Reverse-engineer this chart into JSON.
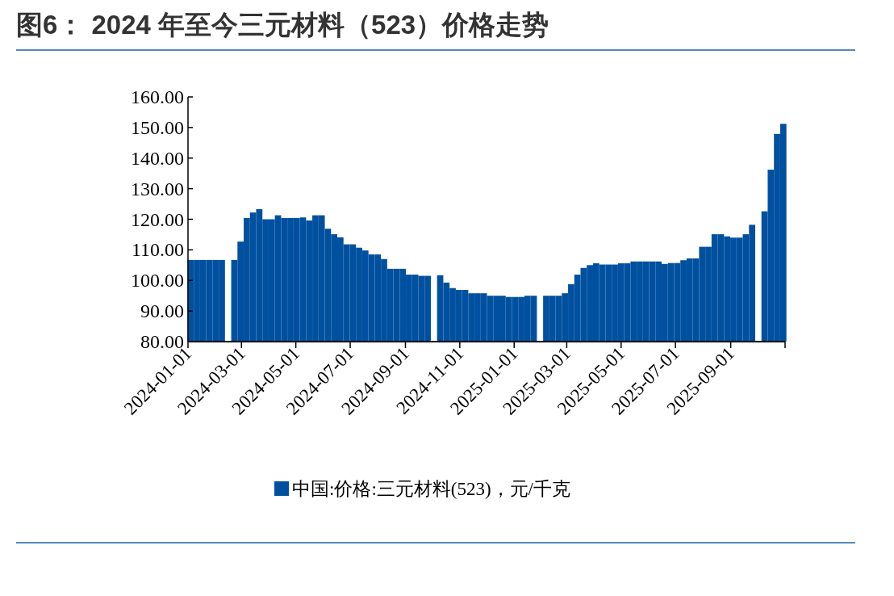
{
  "chart_data": {
    "type": "bar",
    "title": "图6： 2024 年至今三元材料（523）价格走势",
    "x": [
      "2024-01-04",
      "2024-01-11",
      "2024-01-18",
      "2024-01-25",
      "2024-02-01",
      "2024-02-08",
      "2024-02-15",
      "2024-02-22",
      "2024-02-29",
      "2024-03-07",
      "2024-03-14",
      "2024-03-21",
      "2024-03-28",
      "2024-04-04",
      "2024-04-11",
      "2024-04-18",
      "2024-04-25",
      "2024-05-02",
      "2024-05-09",
      "2024-05-16",
      "2024-05-23",
      "2024-05-30",
      "2024-06-06",
      "2024-06-13",
      "2024-06-20",
      "2024-06-27",
      "2024-07-04",
      "2024-07-11",
      "2024-07-18",
      "2024-07-25",
      "2024-08-01",
      "2024-08-08",
      "2024-08-15",
      "2024-08-22",
      "2024-08-29",
      "2024-09-05",
      "2024-09-12",
      "2024-09-19",
      "2024-09-26",
      "2024-10-03",
      "2024-10-10",
      "2024-10-17",
      "2024-10-24",
      "2024-10-31",
      "2024-11-07",
      "2024-11-14",
      "2024-11-21",
      "2024-11-28",
      "2024-12-05",
      "2024-12-12",
      "2024-12-19",
      "2024-12-26",
      "2025-01-02",
      "2025-01-09",
      "2025-01-16",
      "2025-01-23",
      "2025-01-30",
      "2025-02-06",
      "2025-02-13",
      "2025-02-20",
      "2025-02-27",
      "2025-03-06",
      "2025-03-13",
      "2025-03-20",
      "2025-03-27",
      "2025-04-03",
      "2025-04-10",
      "2025-04-17",
      "2025-04-24",
      "2025-05-01",
      "2025-05-08",
      "2025-05-15",
      "2025-05-22",
      "2025-05-29",
      "2025-06-05",
      "2025-06-12",
      "2025-06-19",
      "2025-06-26",
      "2025-07-03",
      "2025-07-10",
      "2025-07-17",
      "2025-07-24",
      "2025-07-31",
      "2025-08-07",
      "2025-08-14",
      "2025-08-21",
      "2025-08-28",
      "2025-09-04",
      "2025-09-11",
      "2025-09-18",
      "2025-09-25",
      "2025-10-02",
      "2025-10-09",
      "2025-10-16",
      "2025-10-23",
      "2025-10-30"
    ],
    "series": [
      {
        "name": "中国:价格:三元材料(523)，元/千克",
        "color": "#0050a0",
        "values": [
          106.7,
          106.7,
          106.7,
          106.7,
          106.7,
          106.7,
          null,
          106.7,
          112.7,
          120.4,
          122.2,
          123.3,
          120.0,
          120.0,
          121.3,
          120.4,
          120.4,
          120.4,
          120.6,
          119.6,
          121.3,
          121.3,
          116.9,
          115.1,
          114.1,
          111.8,
          111.8,
          110.7,
          109.8,
          108.5,
          108.5,
          107.0,
          103.8,
          103.8,
          103.8,
          101.9,
          101.9,
          101.5,
          101.5,
          null,
          101.7,
          99.3,
          97.5,
          96.9,
          96.9,
          95.8,
          95.8,
          95.8,
          95.0,
          95.0,
          95.0,
          94.6,
          94.6,
          94.6,
          95.0,
          95.0,
          null,
          95.0,
          95.0,
          95.0,
          95.8,
          98.8,
          101.9,
          104.1,
          105.0,
          105.6,
          105.2,
          105.2,
          105.2,
          105.6,
          105.6,
          106.2,
          106.2,
          106.2,
          106.2,
          106.2,
          105.4,
          105.7,
          105.7,
          106.6,
          107.2,
          107.2,
          111.0,
          111.0,
          115.1,
          115.1,
          114.4,
          114.0,
          114.0,
          115.1,
          118.2,
          null,
          122.6,
          136.2,
          147.9,
          151.2
        ]
      }
    ],
    "xlim": [
      "2024-01-01",
      "2025-11-01"
    ],
    "xticks": [
      {
        "value": "2024-01-01",
        "label": "2024-01-01"
      },
      {
        "value": "2024-03-01",
        "label": "2024-03-01"
      },
      {
        "value": "2024-05-01",
        "label": "2024-05-01"
      },
      {
        "value": "2024-07-01",
        "label": "2024-07-01"
      },
      {
        "value": "2024-09-01",
        "label": "2024-09-01"
      },
      {
        "value": "2024-11-01",
        "label": "2024-11-01"
      },
      {
        "value": "2025-01-01",
        "label": "2025-01-01"
      },
      {
        "value": "2025-03-01",
        "label": "2025-03-01"
      },
      {
        "value": "2025-05-01",
        "label": "2025-05-01"
      },
      {
        "value": "2025-07-01",
        "label": "2025-07-01"
      },
      {
        "value": "2025-09-01",
        "label": "2025-09-01"
      },
      {
        "value": "2025-11-01",
        "label": null
      }
    ],
    "ylim": [
      80,
      160
    ],
    "yticks": [
      {
        "value": 80,
        "label": "80.00"
      },
      {
        "value": 90,
        "label": "90.00"
      },
      {
        "value": 100,
        "label": "100.00"
      },
      {
        "value": 110,
        "label": "110.00"
      },
      {
        "value": 120,
        "label": "120.00"
      },
      {
        "value": 130,
        "label": "130.00"
      },
      {
        "value": 140,
        "label": "140.00"
      },
      {
        "value": 150,
        "label": "150.00"
      },
      {
        "value": 160,
        "label": "160.00"
      }
    ],
    "legend": "bottom"
  }
}
